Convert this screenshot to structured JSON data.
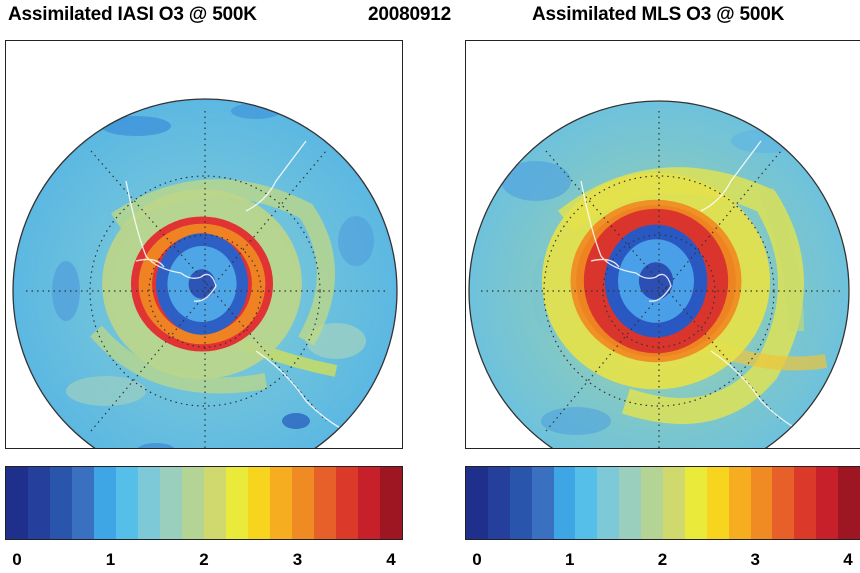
{
  "header": {
    "left_title": "Assimilated IASI O3 @ 500K",
    "date": "20080912",
    "right_title": "Assimilated MLS O3 @ 500K"
  },
  "colorbar": {
    "range": [
      0,
      4
    ],
    "tick_labels": [
      "0",
      "1",
      "2",
      "3",
      "4"
    ],
    "colors": [
      "#1f2f8c",
      "#24409c",
      "#2a55ad",
      "#3a70c0",
      "#3fa6e6",
      "#55bfe9",
      "#7ec9d8",
      "#9bcfbd",
      "#b3d495",
      "#cfd96d",
      "#eaea3a",
      "#f7d51f",
      "#f6ad20",
      "#f08a22",
      "#e7602a",
      "#db3a2b",
      "#c7202a",
      "#9d1621"
    ]
  },
  "maps": [
    {
      "name": "IASI",
      "projection": "polar-stereographic-south",
      "background": "#6ec2dc",
      "features": [
        {
          "type": "ring",
          "label": "collar",
          "color": "#bcd68a",
          "r_outer": 0.52,
          "r_inner": 0.22
        },
        {
          "type": "ring",
          "label": "ridge",
          "color": "#e4252b",
          "r_outer": 0.37,
          "r_inner": 0.22
        },
        {
          "type": "ring",
          "label": "collar-inner",
          "color": "#f08a22",
          "r_outer": 0.33,
          "r_inner": 0.26
        },
        {
          "type": "disk",
          "label": "vortex-edge",
          "color": "#2e5fc4",
          "r": 0.24
        },
        {
          "type": "disk",
          "label": "vortex",
          "color": "#4ea6e6",
          "r": 0.18
        },
        {
          "type": "disk",
          "label": "core",
          "color": "#2d55b6",
          "r": 0.07
        }
      ]
    },
    {
      "name": "MLS",
      "projection": "polar-stereographic-south",
      "background": "#7cc6c8",
      "features": [
        {
          "type": "ring",
          "label": "high-band",
          "color": "#e5e24a",
          "r_outer": 0.6,
          "r_inner": 0.25
        },
        {
          "type": "ring",
          "label": "ridge",
          "color": "#d9262a",
          "r_outer": 0.42,
          "r_inner": 0.26
        },
        {
          "type": "ring",
          "label": "ridge-outer",
          "color": "#f08a22",
          "r_outer": 0.45,
          "r_inner": 0.38
        },
        {
          "type": "disk",
          "label": "vortex-edge",
          "color": "#2a58c2",
          "r": 0.27
        },
        {
          "type": "disk",
          "label": "vortex",
          "color": "#4aa0e8",
          "r": 0.2
        },
        {
          "type": "disk",
          "label": "core",
          "color": "#2b4fb3",
          "r": 0.09
        }
      ]
    }
  ]
}
